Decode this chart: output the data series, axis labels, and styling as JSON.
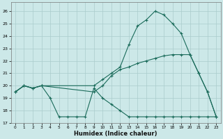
{
  "background_color": "#cce8e8",
  "grid_color": "#aacccc",
  "line_color": "#1a6b5a",
  "xlabel": "Humidex (Indice chaleur)",
  "xlim": [
    -0.5,
    23.5
  ],
  "ylim": [
    17,
    26.7
  ],
  "yticks": [
    17,
    18,
    19,
    20,
    21,
    22,
    23,
    24,
    25,
    26
  ],
  "xticks": [
    0,
    1,
    2,
    3,
    4,
    5,
    6,
    7,
    8,
    9,
    10,
    11,
    12,
    13,
    14,
    15,
    16,
    17,
    18,
    19,
    20,
    21,
    22,
    23
  ],
  "series": [
    {
      "x": [
        0,
        1,
        2,
        3,
        9,
        10,
        11,
        12,
        13,
        14,
        15,
        16,
        17,
        18,
        19,
        20,
        21,
        22,
        23
      ],
      "y": [
        19.5,
        20.0,
        19.8,
        20.0,
        20.0,
        20.5,
        21.0,
        21.5,
        23.3,
        24.8,
        25.3,
        26.0,
        25.7,
        25.0,
        24.2,
        22.5,
        21.0,
        19.5,
        17.5
      ]
    },
    {
      "x": [
        0,
        1,
        2,
        3,
        9,
        10,
        11,
        12,
        13,
        14,
        15,
        16,
        17,
        18,
        19,
        20,
        21,
        22,
        23
      ],
      "y": [
        19.5,
        20.0,
        19.8,
        20.0,
        19.5,
        20.0,
        20.8,
        21.3,
        21.5,
        21.8,
        22.0,
        22.2,
        22.4,
        22.5,
        22.5,
        22.5,
        21.0,
        19.5,
        17.5
      ]
    },
    {
      "x": [
        0,
        1,
        2,
        3,
        4,
        5,
        6,
        7,
        8,
        9,
        10,
        11,
        12,
        13,
        14,
        15,
        16,
        17,
        18,
        19,
        20,
        21,
        22,
        23
      ],
      "y": [
        19.5,
        20.0,
        19.8,
        20.0,
        19.0,
        17.5,
        17.5,
        17.5,
        17.5,
        19.8,
        19.0,
        18.5,
        18.0,
        17.5,
        17.5,
        17.5,
        17.5,
        17.5,
        17.5,
        17.5,
        17.5,
        17.5,
        17.5,
        17.5
      ]
    }
  ]
}
